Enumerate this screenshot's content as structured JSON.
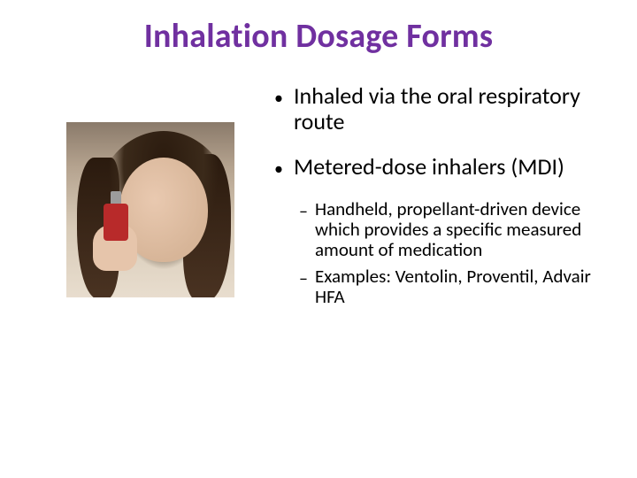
{
  "title": {
    "text": "Inhalation Dosage Forms",
    "color": "#7030a0",
    "fontsize": 38
  },
  "bullets": [
    {
      "text": "Inhaled via the oral respiratory route"
    },
    {
      "text": "Metered-dose inhalers (MDI)"
    }
  ],
  "subbullets": [
    {
      "text": "Handheld, propellant-driven device which provides a specific measured amount of medication"
    },
    {
      "text": "Examples: Ventolin, Proventil, Advair HFA"
    }
  ],
  "image": {
    "description": "person-using-inhaler",
    "inhaler_color": "#b82a2a"
  },
  "colors": {
    "background": "#ffffff",
    "body_text": "#000000"
  }
}
